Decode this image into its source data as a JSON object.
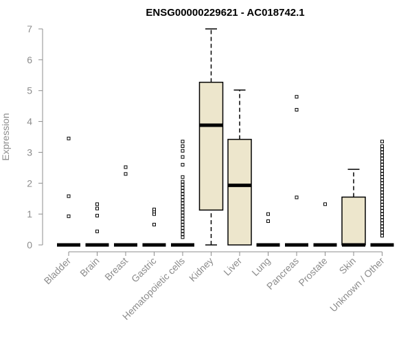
{
  "chart_data": {
    "type": "boxplot",
    "title": "ENSG00000229621 - AC018742.1",
    "xlabel": "",
    "ylabel": "Expression",
    "ylim": [
      0,
      7
    ],
    "yticks": [
      0,
      1,
      2,
      3,
      4,
      5,
      6,
      7
    ],
    "grid": false,
    "colors": {
      "box_fill": "#ede6cc",
      "axis_text": "#8c8c8c"
    },
    "categories": [
      "Bladder",
      "Brain",
      "Breast",
      "Gastric",
      "Hematopoietic cells",
      "Kidney",
      "Liver",
      "Lung",
      "Pancreas",
      "Prostate",
      "Skin",
      "Unknown / Other"
    ],
    "boxes": [
      {
        "category": "Bladder",
        "min": 0,
        "q1": 0,
        "median": 0,
        "q3": 0,
        "max": 0,
        "outliers": [
          0.93,
          1.58,
          3.45
        ]
      },
      {
        "category": "Brain",
        "min": 0,
        "q1": 0,
        "median": 0,
        "q3": 0,
        "max": 0,
        "outliers": [
          0.44,
          0.95,
          1.18,
          1.32
        ]
      },
      {
        "category": "Breast",
        "min": 0,
        "q1": 0,
        "median": 0,
        "q3": 0,
        "max": 0,
        "outliers": [
          2.3,
          2.52
        ]
      },
      {
        "category": "Gastric",
        "min": 0,
        "q1": 0,
        "median": 0,
        "q3": 0,
        "max": 0,
        "outliers": [
          0.66,
          1.0,
          1.08,
          1.15
        ]
      },
      {
        "category": "Hematopoietic cells",
        "min": 0,
        "q1": 0,
        "median": 0,
        "q3": 0,
        "max": 0,
        "outliers": [
          0.25,
          0.35,
          0.45,
          0.55,
          0.65,
          0.75,
          0.85,
          0.95,
          1.05,
          1.15,
          1.25,
          1.35,
          1.45,
          1.55,
          1.65,
          1.75,
          1.85,
          1.95,
          2.05,
          2.2,
          2.6,
          2.85,
          3.05,
          3.2,
          3.35
        ]
      },
      {
        "category": "Kidney",
        "min": 0,
        "q1": 1.13,
        "median": 3.88,
        "q3": 5.27,
        "max": 7.0,
        "outliers": []
      },
      {
        "category": "Liver",
        "min": 0,
        "q1": 0,
        "median": 1.93,
        "q3": 3.42,
        "max": 5.02,
        "outliers": []
      },
      {
        "category": "Lung",
        "min": 0,
        "q1": 0,
        "median": 0,
        "q3": 0,
        "max": 0,
        "outliers": [
          0.77,
          1.0
        ]
      },
      {
        "category": "Pancreas",
        "min": 0,
        "q1": 0,
        "median": 0,
        "q3": 0,
        "max": 0,
        "outliers": [
          1.54,
          4.38,
          4.8
        ]
      },
      {
        "category": "Prostate",
        "min": 0,
        "q1": 0,
        "median": 0,
        "q3": 0,
        "max": 0,
        "outliers": [
          1.32
        ]
      },
      {
        "category": "Skin",
        "min": 0,
        "q1": 0,
        "median": 0,
        "q3": 1.55,
        "max": 2.45,
        "outliers": []
      },
      {
        "category": "Unknown / Other",
        "min": 0,
        "q1": 0,
        "median": 0,
        "q3": 0,
        "max": 0,
        "outliers": [
          0.3,
          0.4,
          0.5,
          0.6,
          0.7,
          0.8,
          0.9,
          1.0,
          1.1,
          1.2,
          1.3,
          1.4,
          1.5,
          1.6,
          1.7,
          1.8,
          1.9,
          2.0,
          2.1,
          2.2,
          2.3,
          2.4,
          2.5,
          2.6,
          2.7,
          2.8,
          2.9,
          3.0,
          3.1,
          3.2,
          3.35
        ]
      }
    ]
  }
}
